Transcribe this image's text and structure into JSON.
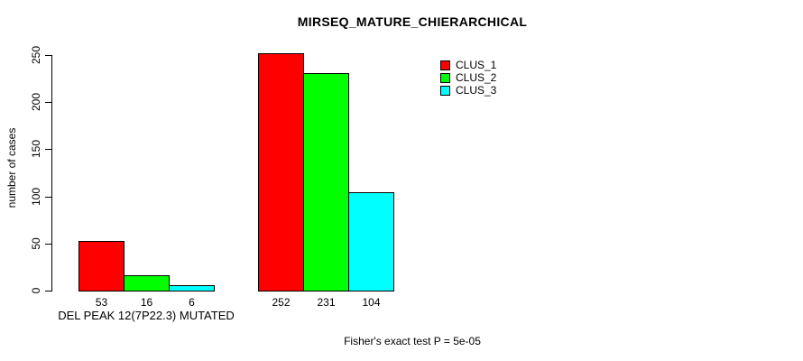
{
  "chart_data": {
    "type": "bar",
    "title": "MIRSEQ_MATURE_CHIERARCHICAL",
    "ylabel": "number of cases",
    "xlabel": "",
    "ylim": [
      0,
      250
    ],
    "yticks": [
      0,
      50,
      100,
      150,
      200,
      250
    ],
    "grid": false,
    "legend_position": "top-right",
    "categories": [
      "DEL PEAK 12(7P22.3) MUTATED",
      ""
    ],
    "series": [
      {
        "name": "CLUS_1",
        "color": "#FF0000",
        "values": [
          53,
          252
        ]
      },
      {
        "name": "CLUS_2",
        "color": "#00FF00",
        "values": [
          16,
          231
        ]
      },
      {
        "name": "CLUS_3",
        "color": "#00FFFF",
        "values": [
          6,
          104
        ]
      }
    ],
    "annotation": "Fisher's exact test P = 5e-05"
  },
  "colors": {
    "background": "#FFFFFF",
    "axis": "#000000",
    "text": "#000000"
  }
}
